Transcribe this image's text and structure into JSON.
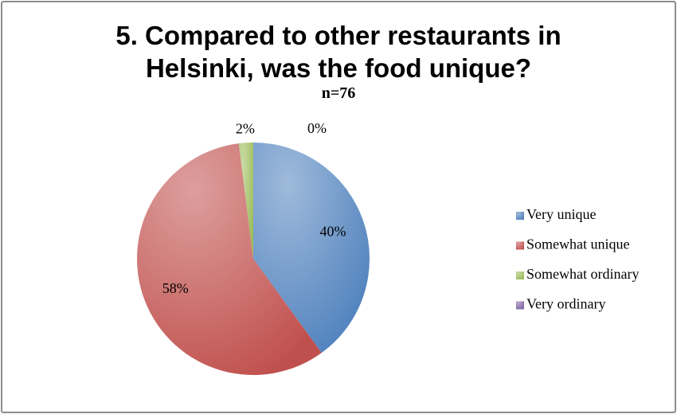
{
  "chart_data": {
    "type": "pie",
    "title": "5. Compared to other restaurants in Helsinki, was the food unique?",
    "subtitle": "n=76",
    "categories": [
      "Very unique",
      "Somewhat unique",
      "Somewhat ordinary",
      "Very ordinary"
    ],
    "values": [
      40,
      58,
      2,
      0
    ],
    "value_labels": [
      "40%",
      "58%",
      "2%",
      "0%"
    ],
    "colors": [
      "#4f81bd",
      "#c0504d",
      "#9bbb59",
      "#8064a2"
    ],
    "legend": "right"
  }
}
